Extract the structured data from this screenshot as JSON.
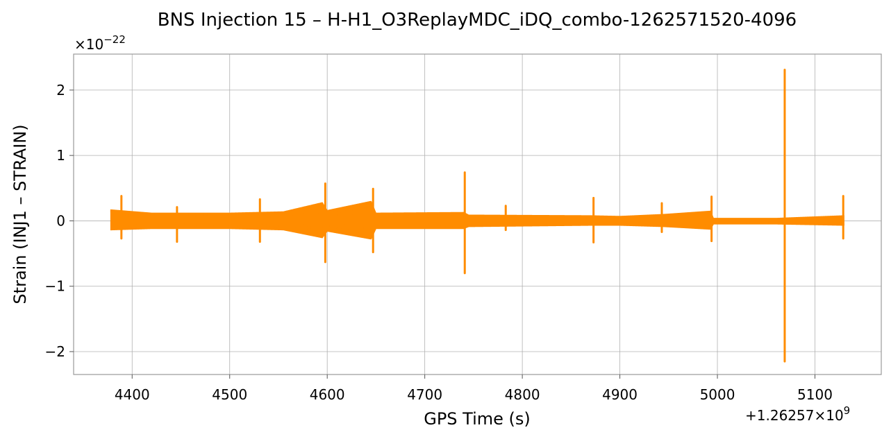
{
  "chart_data": {
    "type": "line",
    "title": "BNS Injection 15 – H-H1_O3ReplayMDC_iDQ_combo-1262571520-4096",
    "xlabel": "GPS Time (s)",
    "ylabel": "Strain (INJ1 – STRAIN)",
    "x_offset_label": "+1.26257×10",
    "x_offset_exp": "9",
    "y_scale_label": "×10",
    "y_scale_exp": "−22",
    "xlim": [
      4340,
      5168
    ],
    "ylim": [
      -2.35,
      2.55
    ],
    "xticks": [
      4400,
      4500,
      4600,
      4700,
      4800,
      4900,
      5000,
      5100
    ],
    "xtick_labels": [
      "4400",
      "4500",
      "4600",
      "4700",
      "4800",
      "4900",
      "5000",
      "5100"
    ],
    "yticks": [
      -2,
      -1,
      0,
      1,
      2
    ],
    "ytick_labels": [
      "−2",
      "−1",
      "0",
      "1",
      "2"
    ],
    "grid": true,
    "line_color": "#ff8c00",
    "series": [
      {
        "x_range": [
          4378,
          5130
        ],
        "envelope": [
          {
            "x": 4378,
            "upper": 0.17,
            "lower": -0.14
          },
          {
            "x": 4420,
            "upper": 0.12,
            "lower": -0.12
          },
          {
            "x": 4500,
            "upper": 0.12,
            "lower": -0.12
          },
          {
            "x": 4555,
            "upper": 0.14,
            "lower": -0.14
          },
          {
            "x": 4595,
            "upper": 0.28,
            "lower": -0.26
          },
          {
            "x": 4600,
            "upper": 0.16,
            "lower": -0.16
          },
          {
            "x": 4645,
            "upper": 0.3,
            "lower": -0.28
          },
          {
            "x": 4650,
            "upper": 0.12,
            "lower": -0.12
          },
          {
            "x": 4740,
            "upper": 0.13,
            "lower": -0.12
          },
          {
            "x": 4745,
            "upper": 0.09,
            "lower": -0.09
          },
          {
            "x": 4870,
            "upper": 0.08,
            "lower": -0.07
          },
          {
            "x": 4900,
            "upper": 0.07,
            "lower": -0.07
          },
          {
            "x": 4945,
            "upper": 0.1,
            "lower": -0.09
          },
          {
            "x": 4993,
            "upper": 0.15,
            "lower": -0.13
          },
          {
            "x": 4996,
            "upper": 0.04,
            "lower": -0.05
          },
          {
            "x": 5060,
            "upper": 0.04,
            "lower": -0.05
          },
          {
            "x": 5130,
            "upper": 0.08,
            "lower": -0.07
          }
        ],
        "spikes": [
          {
            "x": 4389,
            "upper": 0.38,
            "lower": -0.27
          },
          {
            "x": 4446,
            "upper": 0.21,
            "lower": -0.32
          },
          {
            "x": 4531,
            "upper": 0.33,
            "lower": -0.32
          },
          {
            "x": 4598,
            "upper": 0.57,
            "lower": -0.63
          },
          {
            "x": 4647,
            "upper": 0.49,
            "lower": -0.48
          },
          {
            "x": 4741,
            "upper": 0.74,
            "lower": -0.8
          },
          {
            "x": 4783,
            "upper": 0.23,
            "lower": -0.14
          },
          {
            "x": 4873,
            "upper": 0.35,
            "lower": -0.33
          },
          {
            "x": 4943,
            "upper": 0.27,
            "lower": -0.17
          },
          {
            "x": 4994,
            "upper": 0.37,
            "lower": -0.31
          },
          {
            "x": 5069,
            "upper": 2.31,
            "lower": -2.15
          },
          {
            "x": 5129,
            "upper": 0.38,
            "lower": -0.27
          }
        ]
      }
    ]
  }
}
